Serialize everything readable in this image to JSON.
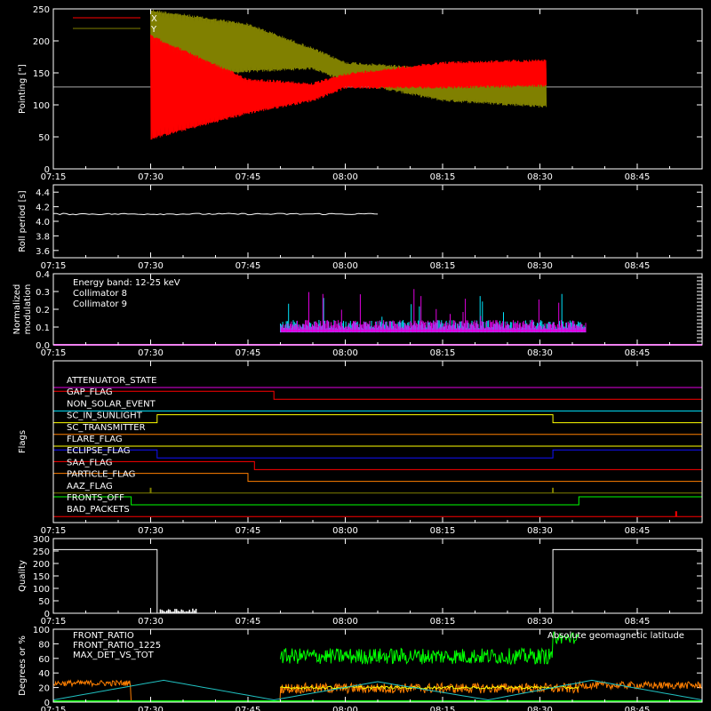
{
  "colors": {
    "red": "#ff0000",
    "olive": "#808000",
    "white": "#ffffff",
    "cyan": "#00e5ff",
    "magenta": "#e000e0",
    "green": "#00ff00",
    "orange": "#ff7f00",
    "yellow": "#ffff00",
    "blue": "#1010ff",
    "teal": "#20c0c0"
  },
  "time_ticks": [
    "07:15",
    "07:30",
    "07:45",
    "08:00",
    "08:15",
    "08:30",
    "08:45"
  ],
  "chart_data": [
    {
      "id": "pointing",
      "type": "line",
      "ylabel": "Pointing [\"]",
      "ylim": [
        0,
        250
      ],
      "yticks": [
        "0",
        "50",
        "100",
        "150",
        "200",
        "250"
      ],
      "legend": [
        "X",
        "Y"
      ],
      "x_range": [
        "07:15",
        "08:55"
      ],
      "baseline": 128,
      "series": [
        {
          "name": "X",
          "envelope_times": [
            "07:30",
            "07:45",
            "07:55",
            "08:00",
            "08:15",
            "08:31"
          ],
          "upper": [
            210,
            142,
            135,
            150,
            168,
            172
          ],
          "lower": [
            45,
            85,
            105,
            125,
            125,
            128
          ]
        },
        {
          "name": "Y",
          "envelope_times": [
            "07:30",
            "07:45",
            "07:55",
            "08:00",
            "08:15",
            "08:31"
          ],
          "upper": [
            250,
            228,
            190,
            168,
            158,
            160
          ],
          "lower": [
            140,
            150,
            155,
            135,
            105,
            95
          ]
        }
      ]
    },
    {
      "id": "roll",
      "type": "line",
      "ylabel": "Roll period [s]",
      "ylim": [
        3.5,
        4.5
      ],
      "yticks": [
        "3.6",
        "3.8",
        "4.0",
        "4.2",
        "4.4"
      ],
      "series": [
        {
          "name": "roll",
          "value": 4.1,
          "x_range": [
            "07:15",
            "08:05"
          ]
        }
      ]
    },
    {
      "id": "modulation",
      "type": "bar",
      "ylabel": "Normalized modulation",
      "ylim": [
        0,
        0.4
      ],
      "yticks": [
        "0.0",
        "0.1",
        "0.2",
        "0.3",
        "0.4"
      ],
      "annotation": "Energy band: 12-25 keV",
      "legend": [
        "Collimator 8",
        "Collimator 9"
      ],
      "active_range": [
        "07:50",
        "08:37"
      ],
      "level": 0.09
    },
    {
      "id": "flags",
      "type": "line",
      "ylabel": "Flags",
      "rows": [
        {
          "name": "ATTENUATOR_STATE",
          "color": "magenta",
          "steps": [
            [
              "07:15",
              0
            ]
          ]
        },
        {
          "name": "GAP_FLAG",
          "color": "red",
          "steps": [
            [
              "07:15",
              1
            ],
            [
              "07:49",
              0
            ]
          ]
        },
        {
          "name": "NON_SOLAR_EVENT",
          "color": "cyan",
          "steps": [
            [
              "07:15",
              0
            ]
          ]
        },
        {
          "name": "SC_IN_SUNLIGHT",
          "color": "yellow",
          "steps": [
            [
              "07:15",
              0
            ],
            [
              "07:31",
              1
            ],
            [
              "08:32",
              0
            ]
          ]
        },
        {
          "name": "SC_TRANSMITTER",
          "color": "orange",
          "steps": [
            [
              "07:15",
              0
            ]
          ]
        },
        {
          "name": "FLARE_FLAG",
          "color": "yellow",
          "steps": [
            [
              "07:15",
              0
            ]
          ]
        },
        {
          "name": "ECLIPSE_FLAG",
          "color": "blue",
          "steps": [
            [
              "07:15",
              1
            ],
            [
              "07:31",
              0
            ],
            [
              "08:32",
              1
            ]
          ]
        },
        {
          "name": "SAA_FLAG",
          "color": "red",
          "steps": [
            [
              "07:15",
              1
            ],
            [
              "07:46",
              0
            ]
          ]
        },
        {
          "name": "PARTICLE_FLAG",
          "color": "orange",
          "steps": [
            [
              "07:15",
              1
            ],
            [
              "07:45",
              0
            ]
          ]
        },
        {
          "name": "AAZ_FLAG",
          "color": "olive",
          "steps": [
            [
              "07:15",
              0
            ]
          ],
          "spikes": [
            "07:30",
            "08:32"
          ]
        },
        {
          "name": "FRONTS_OFF",
          "color": "green",
          "steps": [
            [
              "07:15",
              1
            ],
            [
              "07:27",
              0
            ],
            [
              "08:36",
              1
            ]
          ]
        },
        {
          "name": "BAD_PACKETS",
          "color": "red",
          "steps": [
            [
              "07:15",
              0
            ]
          ],
          "spikes": [
            "08:51"
          ]
        }
      ]
    },
    {
      "id": "quality",
      "type": "line",
      "ylabel": "Quality",
      "ylim": [
        0,
        300
      ],
      "yticks": [
        "0",
        "50",
        "100",
        "150",
        "200",
        "250",
        "300"
      ],
      "segments": [
        {
          "from": "07:15",
          "to": "07:31",
          "value": 256
        },
        {
          "from": "08:32",
          "to": "08:55",
          "value": 256
        }
      ]
    },
    {
      "id": "ratios",
      "type": "line",
      "ylabel": "Degrees or %",
      "ylim": [
        0,
        100
      ],
      "yticks": [
        "0",
        "20",
        "40",
        "60",
        "80",
        "100"
      ],
      "legend": [
        "FRONT_RATIO",
        "FRONT_RATIO_1225",
        "MAX_DET_VS_TOT"
      ],
      "annotation": "Absolute geomagnetic latitude",
      "latitude": {
        "times": [
          "07:15",
          "07:32",
          "07:49",
          "08:05",
          "08:22",
          "08:38",
          "08:55"
        ],
        "values": [
          3,
          30,
          3,
          28,
          3,
          30,
          3
        ]
      }
    }
  ]
}
